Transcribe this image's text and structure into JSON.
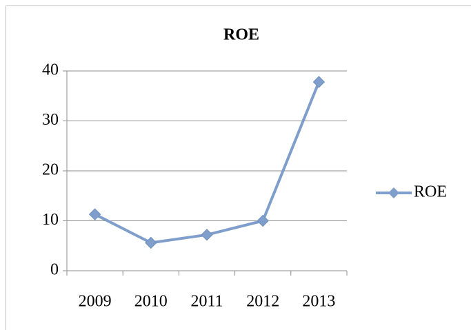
{
  "chart_data": {
    "type": "line",
    "title": "ROE",
    "categories": [
      "2009",
      "2010",
      "2011",
      "2012",
      "2013"
    ],
    "series": [
      {
        "name": "ROE",
        "color": "#7f9ecb",
        "values": [
          11.3,
          5.6,
          7.2,
          10,
          37.8
        ]
      }
    ],
    "ylim": [
      0,
      40
    ],
    "yticks": [
      0,
      10,
      20,
      30,
      40
    ],
    "grid": true,
    "legend": "right"
  }
}
